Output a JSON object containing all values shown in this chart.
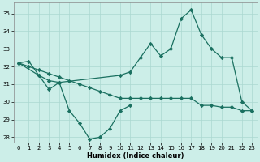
{
  "xlabel": "Humidex (Indice chaleur)",
  "bg_color": "#cceee8",
  "grid_color": "#aad8d0",
  "line_color": "#1a7060",
  "xlim": [
    -0.5,
    23.5
  ],
  "ylim": [
    27.7,
    35.6
  ],
  "yticks": [
    28,
    29,
    30,
    31,
    32,
    33,
    34,
    35
  ],
  "xticks": [
    0,
    1,
    2,
    3,
    4,
    5,
    6,
    7,
    8,
    9,
    10,
    11,
    12,
    13,
    14,
    15,
    16,
    17,
    18,
    19,
    20,
    21,
    22,
    23
  ],
  "line1_x": [
    0,
    1,
    2,
    3,
    4,
    10,
    11,
    12,
    13,
    14,
    15,
    16,
    17,
    18,
    19,
    20,
    21,
    22,
    23
  ],
  "line1_y": [
    32.2,
    32.3,
    31.5,
    31.2,
    31.1,
    31.5,
    31.7,
    32.5,
    33.3,
    32.6,
    33.0,
    34.7,
    35.2,
    33.8,
    33.0,
    32.5,
    32.5,
    30.0,
    29.5
  ],
  "line2_x": [
    0,
    2,
    3,
    4,
    5,
    6,
    7,
    8,
    9,
    10,
    11
  ],
  "line2_y": [
    32.2,
    31.5,
    30.7,
    31.1,
    29.5,
    28.8,
    27.9,
    28.0,
    28.5,
    29.5,
    29.8
  ],
  "line3_x": [
    0,
    1,
    2,
    3,
    4,
    5,
    6,
    7,
    8,
    9,
    10,
    11,
    12,
    13,
    14,
    15,
    16,
    17,
    18,
    19,
    20,
    21,
    22,
    23
  ],
  "line3_y": [
    32.2,
    32.0,
    31.8,
    31.6,
    31.4,
    31.2,
    31.0,
    30.8,
    30.6,
    30.4,
    30.2,
    30.2,
    30.2,
    30.2,
    30.2,
    30.2,
    30.2,
    30.2,
    29.8,
    29.8,
    29.7,
    29.7,
    29.5,
    29.5
  ]
}
